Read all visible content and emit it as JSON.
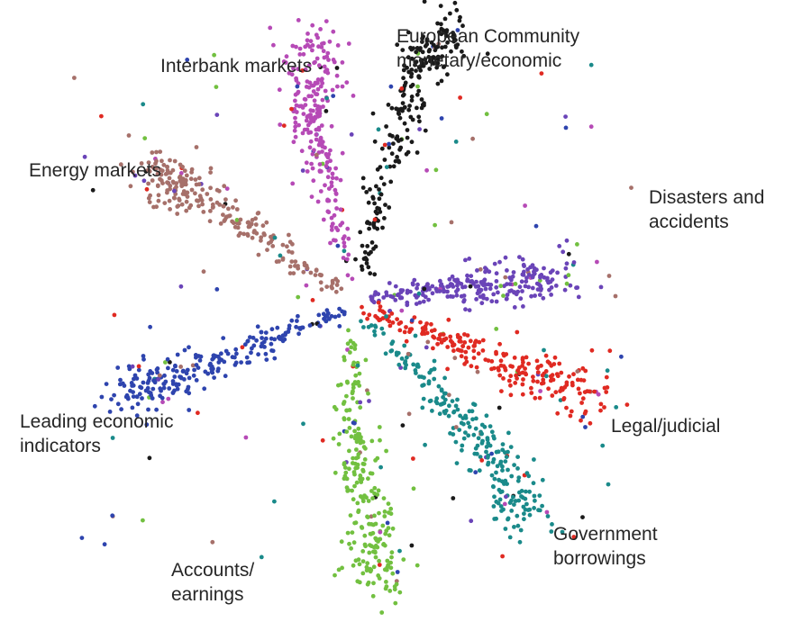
{
  "chart_data": {
    "type": "scatter",
    "title": "",
    "xlabel": "",
    "ylabel": "",
    "grid": false,
    "legend": "none",
    "xlim": [
      -1,
      1
    ],
    "ylim": [
      -1,
      1
    ],
    "series": [
      {
        "name": "European Community monetary/economic",
        "label_lines": [
          "European Community",
          "monetary/economic"
        ],
        "color": "#1a1a1a",
        "centroid": [
          0.18,
          0.8
        ],
        "arm": [
          [
            0.02,
            0.1
          ],
          [
            0.1,
            0.5
          ],
          [
            0.2,
            0.82
          ],
          [
            0.27,
            0.92
          ]
        ]
      },
      {
        "name": "Interbank markets",
        "label_lines": [
          "Interbank markets"
        ],
        "color": "#b64ab6",
        "centroid": [
          -0.12,
          0.55
        ],
        "arm": [
          [
            -0.02,
            0.1
          ],
          [
            -0.1,
            0.45
          ],
          [
            -0.14,
            0.68
          ],
          [
            -0.12,
            0.9
          ]
        ]
      },
      {
        "name": "Energy markets",
        "label_lines": [
          "Energy markets"
        ],
        "color": "#a6706a",
        "centroid": [
          -0.5,
          0.38
        ],
        "arm": [
          [
            -0.05,
            0.05
          ],
          [
            -0.32,
            0.26
          ],
          [
            -0.5,
            0.38
          ],
          [
            -0.62,
            0.46
          ]
        ]
      },
      {
        "name": "Disasters and accidents",
        "label_lines": [
          "Disasters and",
          "accidents"
        ],
        "color": "#6a44b8",
        "centroid": [
          0.46,
          0.08
        ],
        "arm": [
          [
            0.03,
            0.02
          ],
          [
            0.25,
            0.06
          ],
          [
            0.46,
            0.08
          ],
          [
            0.62,
            0.1
          ]
        ]
      },
      {
        "name": "Legal/judicial",
        "label_lines": [
          "Legal/judicial"
        ],
        "color": "#e02a22",
        "centroid": [
          0.52,
          -0.22
        ],
        "arm": [
          [
            0.03,
            -0.02
          ],
          [
            0.3,
            -0.12
          ],
          [
            0.55,
            -0.25
          ],
          [
            0.72,
            -0.3
          ]
        ]
      },
      {
        "name": "Government borrowings",
        "label_lines": [
          "Government",
          "borrowings"
        ],
        "color": "#1a8a8a",
        "centroid": [
          0.4,
          -0.46
        ],
        "arm": [
          [
            0.02,
            -0.04
          ],
          [
            0.25,
            -0.3
          ],
          [
            0.42,
            -0.52
          ],
          [
            0.52,
            -0.72
          ]
        ]
      },
      {
        "name": "Leading economic indicators",
        "label_lines": [
          "Leading economic",
          "indicators"
        ],
        "color": "#2e44ae",
        "centroid": [
          -0.48,
          -0.2
        ],
        "arm": [
          [
            -0.03,
            -0.02
          ],
          [
            -0.3,
            -0.13
          ],
          [
            -0.56,
            -0.26
          ],
          [
            -0.72,
            -0.3
          ]
        ]
      },
      {
        "name": "Accounts/earnings",
        "label_lines": [
          "Accounts/",
          "earnings"
        ],
        "color": "#72c040",
        "centroid": [
          -0.05,
          -0.55
        ],
        "arm": [
          [
            -0.01,
            -0.05
          ],
          [
            -0.02,
            -0.4
          ],
          [
            0.04,
            -0.7
          ],
          [
            0.06,
            -0.95
          ]
        ]
      }
    ]
  }
}
